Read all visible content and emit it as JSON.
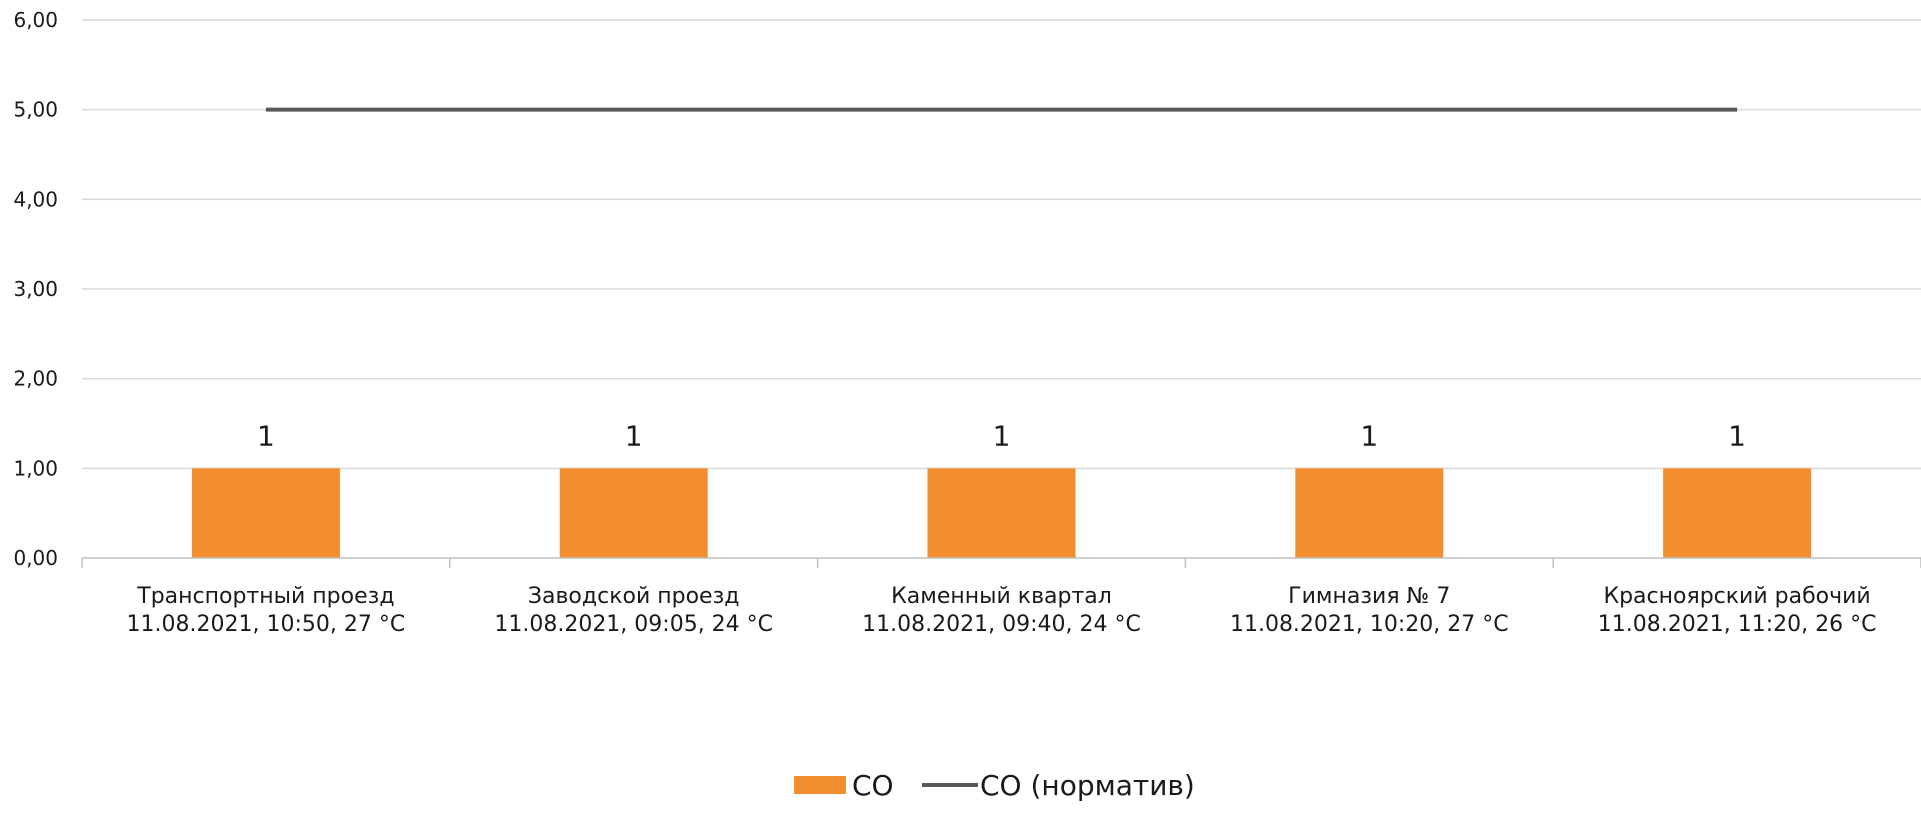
{
  "chart_data": {
    "type": "bar",
    "categories": [
      [
        "Транспортный проезд",
        "11.08.2021, 10:50, 27 °C"
      ],
      [
        "Заводской проезд",
        "11.08.2021, 09:05, 24 °C"
      ],
      [
        "Каменный квартал",
        "11.08.2021, 09:40, 24 °C"
      ],
      [
        "Гимназия № 7",
        "11.08.2021, 10:20, 27 °C"
      ],
      [
        "Красноярский рабочий",
        "11.08.2021, 11:20, 26 °C"
      ]
    ],
    "series": [
      {
        "name": "CO",
        "type": "bar",
        "values": [
          1,
          1,
          1,
          1,
          1
        ],
        "color": "#F28E2F"
      },
      {
        "name": "CO (норматив)",
        "type": "line",
        "values": [
          5,
          5,
          5,
          5,
          5
        ],
        "color": "#595959"
      }
    ],
    "data_labels": [
      "1",
      "1",
      "1",
      "1",
      "1"
    ],
    "y_ticks": [
      "0,00",
      "1,00",
      "2,00",
      "3,00",
      "4,00",
      "5,00",
      "6,00"
    ],
    "ylim": [
      0,
      6
    ],
    "grid": true,
    "legend_position": "bottom",
    "title": "",
    "xlabel": "",
    "ylabel": ""
  }
}
